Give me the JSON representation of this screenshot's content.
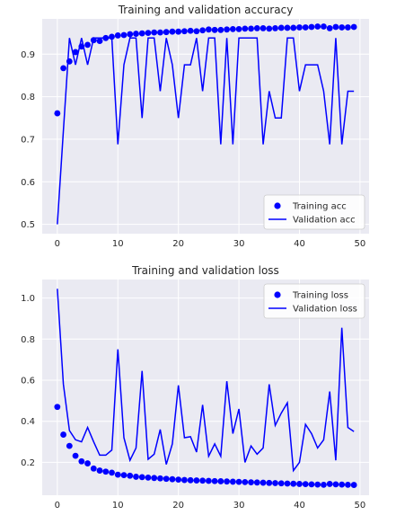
{
  "colors": {
    "training": "#0000ff",
    "validation": "#0000ff",
    "background": "#eaeaf2",
    "grid": "#ffffff"
  },
  "chart_data": [
    {
      "type": "line",
      "title": "Training and validation accuracy",
      "xlim": [
        -2.5,
        51.5
      ],
      "ylim": [
        0.478,
        0.983
      ],
      "xticks": [
        0,
        10,
        20,
        30,
        40,
        50
      ],
      "yticks": [
        0.5,
        0.6,
        0.7,
        0.8,
        0.9
      ],
      "ytick_labels": [
        "0.5",
        "0.6",
        "0.7",
        "0.8",
        "0.9"
      ],
      "legend_position": "lower-right",
      "grid": true,
      "series": [
        {
          "name": "Training acc",
          "style": "markers",
          "x": [
            0,
            1,
            2,
            3,
            4,
            5,
            6,
            7,
            8,
            9,
            10,
            11,
            12,
            13,
            14,
            15,
            16,
            17,
            18,
            19,
            20,
            21,
            22,
            23,
            24,
            25,
            26,
            27,
            28,
            29,
            30,
            31,
            32,
            33,
            34,
            35,
            36,
            37,
            38,
            39,
            40,
            41,
            42,
            43,
            44,
            45,
            46,
            47,
            48,
            49
          ],
          "y": [
            0.761,
            0.867,
            0.883,
            0.905,
            0.918,
            0.922,
            0.933,
            0.931,
            0.938,
            0.941,
            0.944,
            0.945,
            0.947,
            0.948,
            0.949,
            0.95,
            0.951,
            0.951,
            0.952,
            0.953,
            0.953,
            0.954,
            0.955,
            0.954,
            0.956,
            0.958,
            0.957,
            0.957,
            0.958,
            0.959,
            0.959,
            0.96,
            0.96,
            0.961,
            0.961,
            0.96,
            0.961,
            0.962,
            0.962,
            0.962,
            0.963,
            0.963,
            0.964,
            0.965,
            0.965,
            0.961,
            0.964,
            0.963,
            0.963,
            0.964
          ]
        },
        {
          "name": "Validation acc",
          "style": "line",
          "x": [
            0,
            1,
            2,
            3,
            4,
            5,
            6,
            7,
            8,
            9,
            10,
            11,
            12,
            13,
            14,
            15,
            16,
            17,
            18,
            19,
            20,
            21,
            22,
            23,
            24,
            25,
            26,
            27,
            28,
            29,
            30,
            31,
            32,
            33,
            34,
            35,
            36,
            37,
            38,
            39,
            40,
            41,
            42,
            43,
            44,
            45,
            46,
            47,
            48,
            49
          ],
          "y": [
            0.5,
            0.72,
            0.938,
            0.875,
            0.938,
            0.875,
            0.938,
            0.938,
            0.938,
            0.938,
            0.688,
            0.875,
            0.938,
            0.938,
            0.75,
            0.938,
            0.938,
            0.813,
            0.938,
            0.875,
            0.75,
            0.875,
            0.875,
            0.938,
            0.813,
            0.938,
            0.938,
            0.688,
            0.938,
            0.688,
            0.938,
            0.938,
            0.938,
            0.938,
            0.688,
            0.813,
            0.75,
            0.75,
            0.938,
            0.938,
            0.813,
            0.875,
            0.875,
            0.875,
            0.813,
            0.688,
            0.938,
            0.688,
            0.813,
            0.813
          ]
        }
      ]
    },
    {
      "type": "line",
      "title": "Training and validation loss",
      "xlim": [
        -2.5,
        51.5
      ],
      "ylim": [
        0.04,
        1.09
      ],
      "xticks": [
        0,
        10,
        20,
        30,
        40,
        50
      ],
      "yticks": [
        0.2,
        0.4,
        0.6,
        0.8,
        1.0
      ],
      "ytick_labels": [
        "0.2",
        "0.4",
        "0.6",
        "0.8",
        "1.0"
      ],
      "legend_position": "upper-right",
      "grid": true,
      "series": [
        {
          "name": "Training loss",
          "style": "markers",
          "x": [
            0,
            1,
            2,
            3,
            4,
            5,
            6,
            7,
            8,
            9,
            10,
            11,
            12,
            13,
            14,
            15,
            16,
            17,
            18,
            19,
            20,
            21,
            22,
            23,
            24,
            25,
            26,
            27,
            28,
            29,
            30,
            31,
            32,
            33,
            34,
            35,
            36,
            37,
            38,
            39,
            40,
            41,
            42,
            43,
            44,
            45,
            46,
            47,
            48,
            49
          ],
          "y": [
            0.47,
            0.335,
            0.28,
            0.232,
            0.205,
            0.195,
            0.17,
            0.16,
            0.155,
            0.15,
            0.14,
            0.138,
            0.135,
            0.13,
            0.128,
            0.126,
            0.124,
            0.122,
            0.12,
            0.118,
            0.116,
            0.114,
            0.113,
            0.112,
            0.111,
            0.11,
            0.109,
            0.108,
            0.107,
            0.106,
            0.105,
            0.104,
            0.103,
            0.102,
            0.101,
            0.1,
            0.099,
            0.098,
            0.097,
            0.096,
            0.095,
            0.094,
            0.093,
            0.092,
            0.091,
            0.095,
            0.093,
            0.092,
            0.091,
            0.09
          ]
        },
        {
          "name": "Validation loss",
          "style": "line",
          "x": [
            0,
            1,
            2,
            3,
            4,
            5,
            6,
            7,
            8,
            9,
            10,
            11,
            12,
            13,
            14,
            15,
            16,
            17,
            18,
            19,
            20,
            21,
            22,
            23,
            24,
            25,
            26,
            27,
            28,
            29,
            30,
            31,
            32,
            33,
            34,
            35,
            36,
            37,
            38,
            39,
            40,
            41,
            42,
            43,
            44,
            45,
            46,
            47,
            48,
            49
          ],
          "y": [
            1.045,
            0.58,
            0.355,
            0.31,
            0.3,
            0.37,
            0.3,
            0.235,
            0.235,
            0.26,
            0.75,
            0.32,
            0.21,
            0.27,
            0.645,
            0.215,
            0.24,
            0.36,
            0.19,
            0.29,
            0.575,
            0.32,
            0.325,
            0.25,
            0.48,
            0.23,
            0.29,
            0.23,
            0.595,
            0.34,
            0.46,
            0.2,
            0.28,
            0.24,
            0.27,
            0.58,
            0.38,
            0.44,
            0.49,
            0.16,
            0.2,
            0.385,
            0.34,
            0.27,
            0.31,
            0.545,
            0.21,
            0.855,
            0.37,
            0.35
          ]
        }
      ]
    }
  ]
}
